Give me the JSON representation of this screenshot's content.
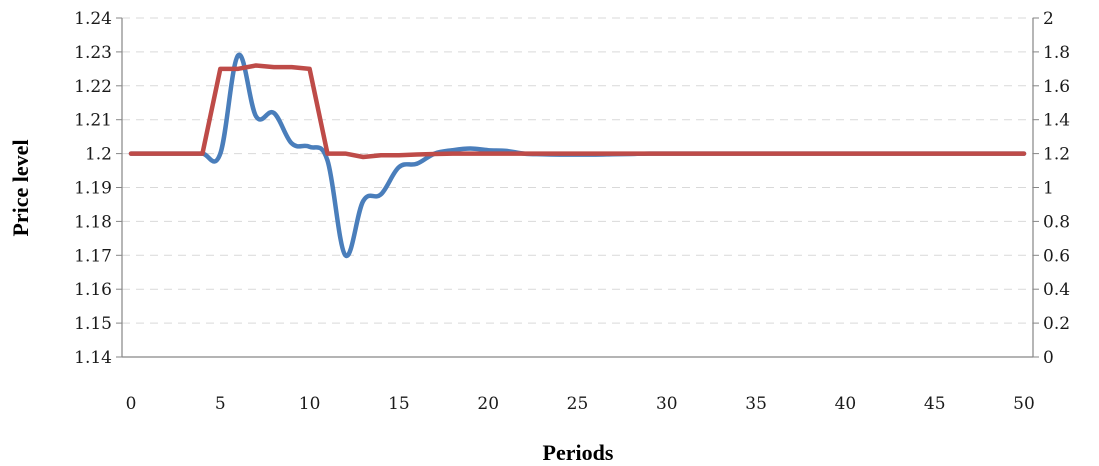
{
  "chart_data": {
    "type": "line",
    "title": "",
    "xlabel": "Periods",
    "ylabel": "Price level",
    "y2label": "",
    "xlim": [
      0,
      50
    ],
    "ylim": [
      1.14,
      1.24
    ],
    "y2lim": [
      0,
      2
    ],
    "grid": true,
    "x_ticks": [
      "0",
      "5",
      "10",
      "15",
      "20",
      "25",
      "30",
      "35",
      "40",
      "45",
      "50"
    ],
    "y_ticks": [
      "1.14",
      "1.15",
      "1.16",
      "1.17",
      "1.18",
      "1.19",
      "1.2",
      "1.21",
      "1.22",
      "1.23",
      "1.24"
    ],
    "y2_ticks": [
      "0",
      "0.2",
      "0.4",
      "0.6",
      "0.8",
      "1",
      "1.2",
      "1.4",
      "1.6",
      "1.8",
      "2"
    ],
    "series": [
      {
        "axis": "left",
        "color": "#4a7ebb",
        "x": [
          0,
          1,
          2,
          3,
          4,
          5,
          6,
          7,
          8,
          9,
          10,
          11,
          12,
          13,
          14,
          15,
          16,
          17,
          18,
          19,
          20,
          21,
          22,
          23,
          24,
          25,
          26,
          27,
          28,
          29,
          30,
          35,
          40,
          45,
          50
        ],
        "values": [
          1.2,
          1.2,
          1.2,
          1.2,
          1.2,
          1.2,
          1.229,
          1.211,
          1.212,
          1.203,
          1.202,
          1.198,
          1.17,
          1.186,
          1.188,
          1.196,
          1.197,
          1.2,
          1.201,
          1.2015,
          1.201,
          1.2008,
          1.2,
          1.1998,
          1.1997,
          1.1997,
          1.1997,
          1.1998,
          1.1999,
          1.2,
          1.2,
          1.2,
          1.2,
          1.2,
          1.2
        ]
      },
      {
        "axis": "right",
        "color": "#be4b48",
        "x": [
          0,
          1,
          2,
          3,
          4,
          5,
          6,
          7,
          8,
          9,
          10,
          11,
          12,
          13,
          14,
          15,
          16,
          17,
          18,
          19,
          20,
          25,
          30,
          35,
          40,
          45,
          50
        ],
        "values": [
          1.2,
          1.2,
          1.2,
          1.2,
          1.2,
          1.7,
          1.7,
          1.72,
          1.71,
          1.71,
          1.7,
          1.2,
          1.2,
          1.18,
          1.19,
          1.19,
          1.195,
          1.198,
          1.2,
          1.2,
          1.2,
          1.2,
          1.2,
          1.2,
          1.2,
          1.2,
          1.2
        ]
      }
    ]
  }
}
